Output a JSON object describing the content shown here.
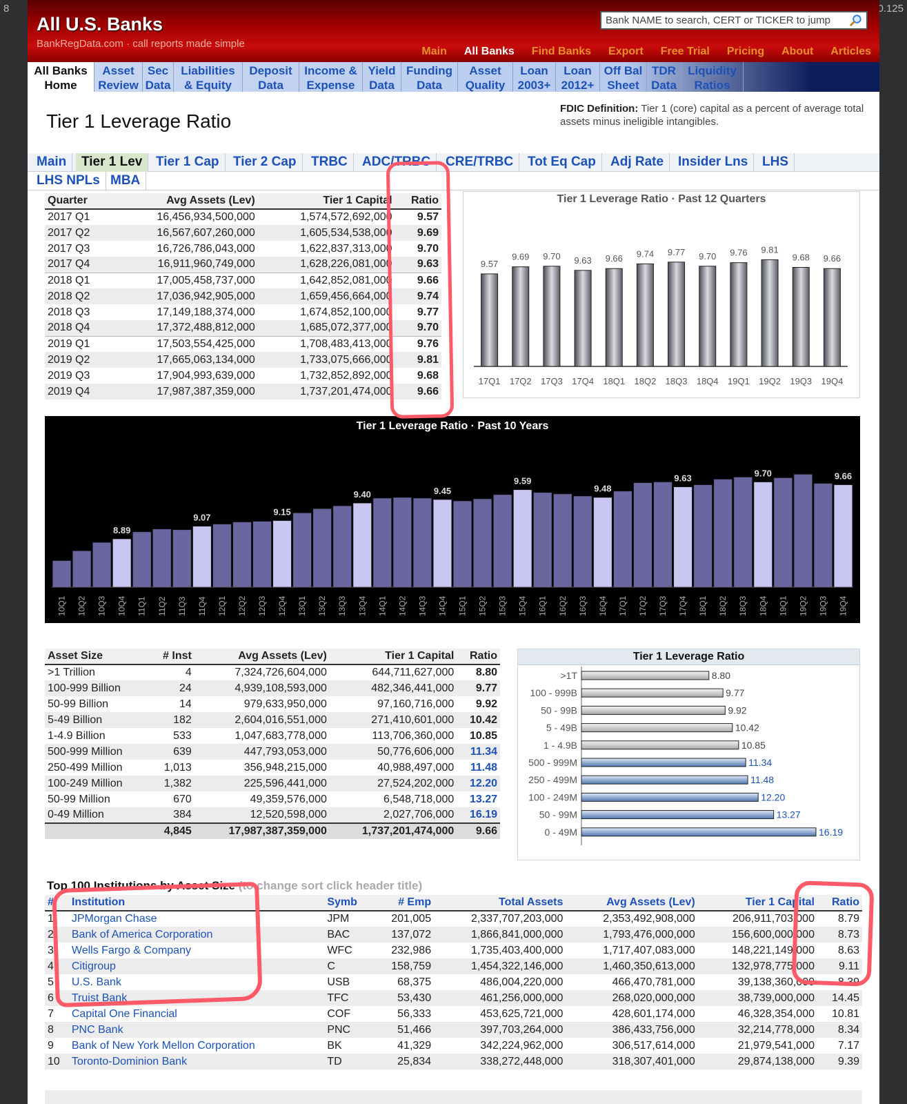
{
  "corner": {
    "left": "8",
    "right": "0.125"
  },
  "header": {
    "brand": "All U.S. Banks",
    "tagline": "BankRegData.com · call reports made simple",
    "search_placeholder": "Bank NAME to search, CERT or TICKER to jump"
  },
  "topnav": [
    {
      "label": "Main",
      "on": false
    },
    {
      "label": "All Banks",
      "on": true
    },
    {
      "label": "Find Banks",
      "on": false
    },
    {
      "label": "Export",
      "on": false
    },
    {
      "label": "Free Trial",
      "on": false
    },
    {
      "label": "Pricing",
      "on": false
    },
    {
      "label": "About",
      "on": false
    },
    {
      "label": "Articles",
      "on": false
    }
  ],
  "secnav": [
    [
      "All Banks",
      "Home"
    ],
    [
      "Asset",
      "Review"
    ],
    [
      "Sec",
      "Data"
    ],
    [
      "Liabilities",
      "& Equity"
    ],
    [
      "Deposit",
      "Data"
    ],
    [
      "Income &",
      "Expense"
    ],
    [
      "Yield",
      "Data"
    ],
    [
      "Funding",
      "Data"
    ],
    [
      "Asset",
      "Quality"
    ],
    [
      "Loan",
      "2003+"
    ],
    [
      "Loan",
      "2012+"
    ],
    [
      "Off Bal",
      "Sheet"
    ],
    [
      "TDR",
      "Data"
    ],
    [
      "Liquidity",
      "Ratios"
    ]
  ],
  "page_title": "Tier 1 Leverage Ratio",
  "fdic": {
    "label": "FDIC Definition:",
    "text": "Tier 1 (core) capital as a percent of average total assets minus ineligible intangibles."
  },
  "tabs_row1": [
    "Main",
    "Tier 1 Lev",
    "Tier 1 Cap",
    "Tier 2 Cap",
    "TRBC",
    "ADC/TRBC",
    "CRE/TRBC",
    "Tot Eq Cap",
    "Adj Rate",
    "Insider Lns",
    "LHS"
  ],
  "tabs_row2": [
    "LHS NPLs",
    "MBA"
  ],
  "active_tab": "Tier 1 Lev",
  "quarterly": {
    "headers": [
      "Quarter",
      "Avg Assets (Lev)",
      "Tier 1 Capital",
      "Ratio"
    ],
    "rows": [
      [
        "2017 Q1",
        "16,456,934,500,000",
        "1,574,572,692,000",
        "9.57"
      ],
      [
        "2017 Q2",
        "16,567,607,260,000",
        "1,605,534,538,000",
        "9.69"
      ],
      [
        "2017 Q3",
        "16,726,786,043,000",
        "1,622,837,313,000",
        "9.70"
      ],
      [
        "2017 Q4",
        "16,911,960,749,000",
        "1,628,226,081,000",
        "9.63"
      ],
      [
        "2018 Q1",
        "17,005,458,737,000",
        "1,642,852,081,000",
        "9.66"
      ],
      [
        "2018 Q2",
        "17,036,942,905,000",
        "1,659,456,664,000",
        "9.74"
      ],
      [
        "2018 Q3",
        "17,149,188,374,000",
        "1,674,852,100,000",
        "9.77"
      ],
      [
        "2018 Q4",
        "17,372,488,812,000",
        "1,685,072,377,000",
        "9.70"
      ],
      [
        "2019 Q1",
        "17,503,554,425,000",
        "1,708,483,413,000",
        "9.76"
      ],
      [
        "2019 Q2",
        "17,665,063,134,000",
        "1,733,075,666,000",
        "9.81"
      ],
      [
        "2019 Q3",
        "17,904,993,639,000",
        "1,732,852,892,000",
        "9.68"
      ],
      [
        "2019 Q4",
        "17,987,387,359,000",
        "1,737,201,474,000",
        "9.66"
      ]
    ]
  },
  "asset_size": {
    "headers": [
      "Asset Size",
      "# Inst",
      "Avg Assets (Lev)",
      "Tier 1 Capital",
      "Ratio"
    ],
    "rows": [
      [
        ">1 Trillion",
        "4",
        "7,324,726,604,000",
        "644,711,627,000",
        "8.80"
      ],
      [
        "100-999 Billion",
        "24",
        "4,939,108,593,000",
        "482,346,441,000",
        "9.77"
      ],
      [
        "50-99 Billion",
        "14",
        "979,633,950,000",
        "97,160,716,000",
        "9.92"
      ],
      [
        "5-49 Billion",
        "182",
        "2,604,016,551,000",
        "271,410,601,000",
        "10.42"
      ],
      [
        "1-4.9 Billion",
        "533",
        "1,047,683,778,000",
        "113,706,360,000",
        "10.85"
      ],
      [
        "500-999 Million",
        "639",
        "447,793,053,000",
        "50,776,606,000",
        "11.34"
      ],
      [
        "250-499 Million",
        "1,013",
        "356,948,215,000",
        "40,988,497,000",
        "11.48"
      ],
      [
        "100-249 Million",
        "1,382",
        "225,596,441,000",
        "27,524,202,000",
        "12.20"
      ],
      [
        "50-99 Million",
        "670",
        "49,359,576,000",
        "6,548,718,000",
        "13.27"
      ],
      [
        "0-49 Million",
        "384",
        "12,520,598,000",
        "2,027,706,000",
        "16.19"
      ]
    ],
    "total": [
      "",
      "4,845",
      "17,987,387,359,000",
      "1,737,201,474,000",
      "9.66"
    ]
  },
  "top100": {
    "title": "Top 100 Institutions by Asset Size",
    "hint": "(to change sort click header title)",
    "headers": [
      "#",
      "Institution",
      "Symb",
      "# Emp",
      "Total Assets",
      "Avg Assets (Lev)",
      "Tier 1 Capital",
      "Ratio"
    ],
    "rows": [
      [
        "1",
        "JPMorgan Chase",
        "JPM",
        "201,005",
        "2,337,707,203,000",
        "2,353,492,908,000",
        "206,911,703,000",
        "8.79"
      ],
      [
        "2",
        "Bank of America Corporation",
        "BAC",
        "137,072",
        "1,866,841,000,000",
        "1,793,476,000,000",
        "156,600,000,000",
        "8.73"
      ],
      [
        "3",
        "Wells Fargo & Company",
        "WFC",
        "232,986",
        "1,735,403,400,000",
        "1,717,407,083,000",
        "148,221,149,000",
        "8.63"
      ],
      [
        "4",
        "Citigroup",
        "C",
        "158,759",
        "1,454,322,146,000",
        "1,460,350,613,000",
        "132,978,775,000",
        "9.11"
      ],
      [
        "5",
        "U.S. Bank",
        "USB",
        "68,375",
        "486,004,220,000",
        "466,470,781,000",
        "39,138,360,000",
        "8.39"
      ],
      [
        "6",
        "Truist Bank",
        "TFC",
        "53,430",
        "461,256,000,000",
        "268,020,000,000",
        "38,739,000,000",
        "14.45"
      ],
      [
        "7",
        "Capital One Financial",
        "COF",
        "56,333",
        "453,625,721,000",
        "428,601,174,000",
        "46,328,354,000",
        "10.81"
      ],
      [
        "8",
        "PNC Bank",
        "PNC",
        "51,466",
        "397,703,264,000",
        "386,433,756,000",
        "32,214,778,000",
        "8.34"
      ],
      [
        "9",
        "Bank of New York Mellon Corporation",
        "BK",
        "41,329",
        "342,224,962,000",
        "306,517,614,000",
        "21,979,541,000",
        "7.17"
      ],
      [
        "10",
        "Toronto-Dominion Bank",
        "TD",
        "25,834",
        "338,272,448,000",
        "318,307,401,000",
        "29,874,138,000",
        "9.39"
      ]
    ]
  },
  "chart_data": [
    {
      "type": "bar",
      "title": "Tier 1 Leverage Ratio · Past 12 Quarters",
      "categories": [
        "17Q1",
        "17Q2",
        "17Q3",
        "17Q4",
        "18Q1",
        "18Q2",
        "18Q3",
        "18Q4",
        "19Q1",
        "19Q2",
        "19Q3",
        "19Q4"
      ],
      "values": [
        9.57,
        9.69,
        9.7,
        9.63,
        9.66,
        9.74,
        9.77,
        9.7,
        9.76,
        9.81,
        9.68,
        9.66
      ],
      "ylim": [
        8.0,
        9.85
      ]
    },
    {
      "type": "bar",
      "title": "Tier 1 Leverage Ratio · Past 10 Years",
      "categories": [
        "10Q1",
        "10Q2",
        "10Q3",
        "10Q4",
        "11Q1",
        "11Q2",
        "11Q3",
        "11Q4",
        "12Q1",
        "12Q2",
        "12Q3",
        "12Q4",
        "13Q1",
        "13Q2",
        "13Q3",
        "13Q4",
        "14Q1",
        "14Q2",
        "14Q3",
        "14Q4",
        "15Q1",
        "15Q2",
        "15Q3",
        "15Q4",
        "16Q1",
        "16Q2",
        "16Q3",
        "16Q4",
        "17Q1",
        "17Q2",
        "17Q3",
        "17Q4",
        "18Q1",
        "18Q2",
        "18Q3",
        "18Q4",
        "19Q1",
        "19Q2",
        "19Q3",
        "19Q4"
      ],
      "values": [
        8.58,
        8.72,
        8.84,
        8.89,
        8.99,
        9.03,
        9.02,
        9.07,
        9.1,
        9.13,
        9.14,
        9.15,
        9.26,
        9.32,
        9.36,
        9.4,
        9.47,
        9.48,
        9.47,
        9.45,
        9.43,
        9.46,
        9.52,
        9.59,
        9.55,
        9.53,
        9.5,
        9.48,
        9.57,
        9.69,
        9.7,
        9.63,
        9.66,
        9.74,
        9.77,
        9.7,
        9.76,
        9.81,
        9.68,
        9.66
      ],
      "labeled": {
        "3": "8.89",
        "7": "9.07",
        "11": "9.15",
        "15": "9.40",
        "19": "9.45",
        "23": "9.59",
        "27": "9.48",
        "31": "9.63",
        "35": "9.70",
        "39": "9.66"
      },
      "ylim": [
        8.2,
        9.9
      ]
    },
    {
      "type": "bar",
      "title": "Tier 1 Leverage Ratio",
      "orientation": "horizontal",
      "categories": [
        ">1T",
        "100 - 999B",
        "50 - 99B",
        "5 - 49B",
        "1 - 4.9B",
        "500 - 999M",
        "250 - 499M",
        "100 - 249M",
        "50 - 99M",
        "0 - 49M"
      ],
      "values": [
        8.8,
        9.77,
        9.92,
        10.42,
        10.85,
        11.34,
        11.48,
        12.2,
        13.27,
        16.19
      ],
      "xlim": [
        0,
        16.19
      ]
    }
  ],
  "colors": {
    "header_red": "#c80b0b",
    "nav_orange": "#e8902c",
    "link_blue": "#1c52b8",
    "dark_bar": "#6a66a0",
    "dark_bar_hl": "#c9c7f2",
    "highlight": "#ff5a68"
  }
}
